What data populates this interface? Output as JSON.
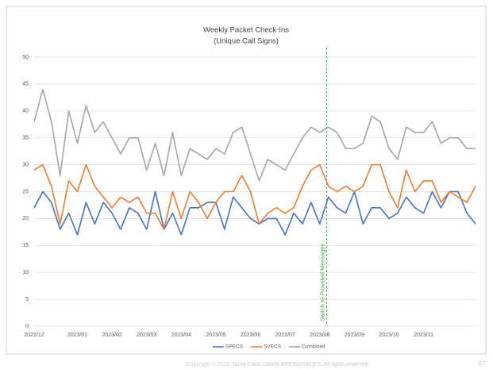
{
  "chart_data": {
    "type": "line",
    "title": "Weekly Packet Check-Ins",
    "subtitle": "(Unique Call Signs)",
    "categories": [
      "2022/12",
      null,
      null,
      null,
      null,
      "2023/01",
      null,
      null,
      null,
      "2023/02",
      null,
      null,
      null,
      "2023/03",
      null,
      null,
      null,
      "2023/04",
      null,
      null,
      null,
      "2023/05",
      null,
      null,
      null,
      "2023/06",
      null,
      null,
      null,
      "2023/07",
      null,
      null,
      null,
      "2023/08",
      null,
      null,
      null,
      "2023/09",
      null,
      null,
      null,
      "2023/10",
      null,
      null,
      null,
      "2023/11",
      null,
      null,
      null,
      null,
      null,
      null
    ],
    "series": [
      {
        "name": "SPECS",
        "color": "#4472c4",
        "values": [
          22,
          25,
          23,
          18,
          21,
          17,
          23,
          19,
          23,
          21,
          18,
          22,
          21,
          18,
          25,
          18,
          21,
          17,
          22,
          22,
          23,
          23,
          18,
          24,
          22,
          20,
          19,
          20,
          20,
          17,
          21,
          19,
          23,
          19,
          24,
          22,
          21,
          25,
          19,
          22,
          22,
          20,
          21,
          24,
          22,
          21,
          25,
          22,
          25,
          25,
          21,
          19
        ]
      },
      {
        "name": "SVECS",
        "color": "#ed7d31",
        "values": [
          29,
          30,
          26,
          19,
          27,
          25,
          30,
          26,
          24,
          22,
          24,
          23,
          24,
          21,
          21,
          18,
          25,
          20,
          25,
          23,
          20,
          23,
          25,
          25,
          28,
          25,
          19,
          21,
          22,
          21,
          22,
          26,
          29,
          30,
          26,
          25,
          26,
          25,
          26,
          30,
          30,
          25,
          22,
          29,
          25,
          27,
          27,
          23,
          25,
          24,
          23,
          26
        ]
      },
      {
        "name": "Combined",
        "color": "#a5a5a5",
        "values": [
          38,
          44,
          38,
          28,
          40,
          34,
          41,
          36,
          38,
          35,
          32,
          35,
          35,
          29,
          34,
          28,
          36,
          28,
          33,
          32,
          31,
          33,
          32,
          36,
          37,
          32,
          27,
          31,
          30,
          29,
          32,
          35,
          37,
          36,
          37,
          36,
          33,
          33,
          34,
          39,
          38,
          33,
          31,
          37,
          36,
          36,
          38,
          34,
          35,
          35,
          33,
          33
        ]
      }
    ],
    "ylim": [
      0,
      50
    ],
    "yticks": [
      0,
      5,
      10,
      15,
      20,
      25,
      30,
      35,
      40,
      45,
      50
    ],
    "grid": true,
    "legend": "bottom",
    "annotation": "Switch to Provided Messages"
  },
  "footer": {
    "copyright": "Copyright © 2023 Santa Clara County ARES®/RACES.  All rights reserved.",
    "page": "57"
  }
}
